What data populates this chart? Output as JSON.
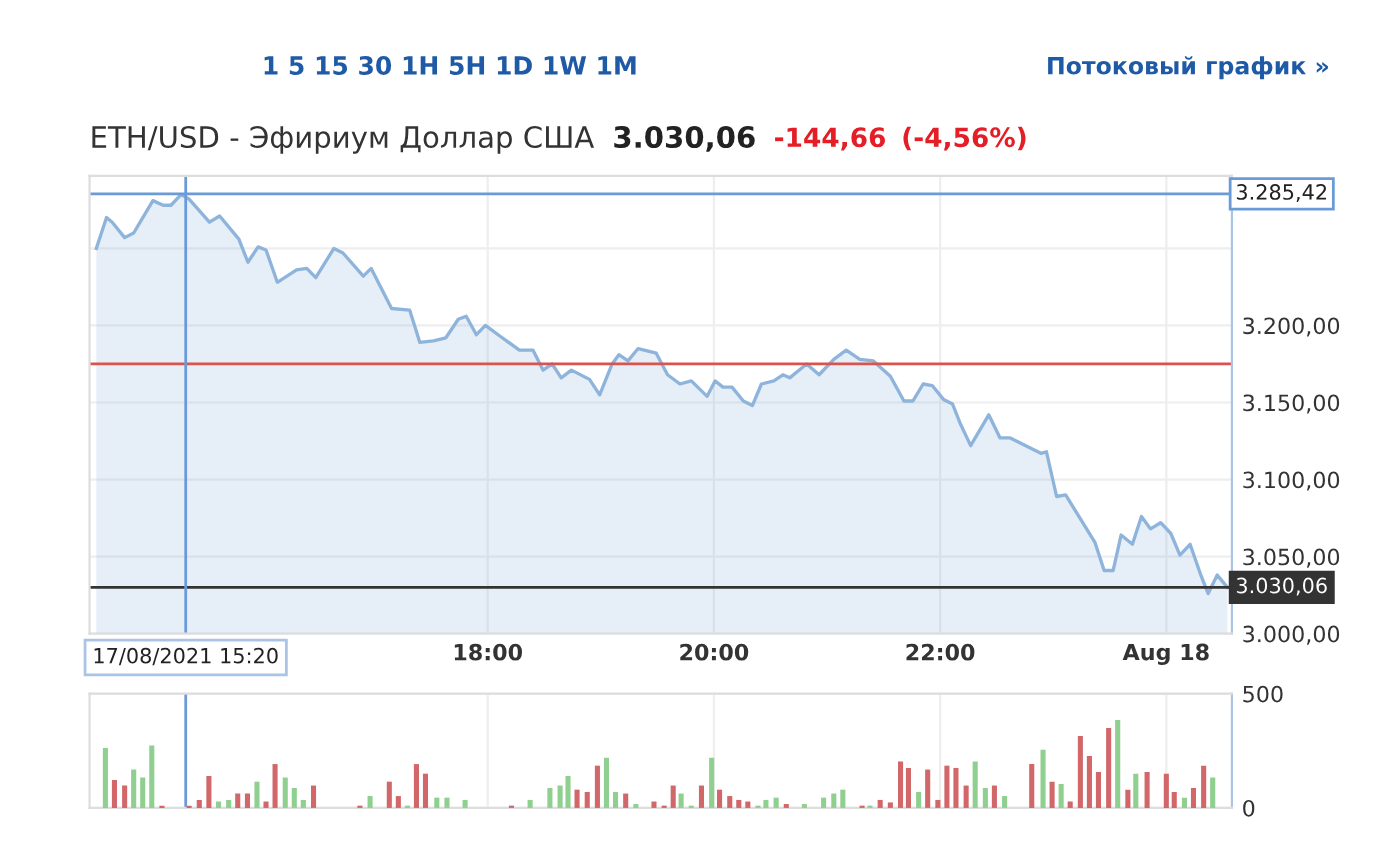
{
  "chart_data": [
    {
      "type": "area",
      "title": "ETH/USD - Эфириум Доллар США",
      "subtitle": "3.030,06",
      "annotations": [
        "-144,66",
        "(-4,56%)",
        "1 5 15 30 1H 5H 1D 1W 1M",
        "Потоковый график »"
      ],
      "series": [
        {
          "color": "#8fb4dc",
          "x": [
            14.54,
            14.63,
            14.68,
            14.79,
            14.87,
            15.04,
            15.13,
            15.2,
            15.29,
            15.36,
            15.54,
            15.63,
            15.8,
            15.88,
            15.97,
            16.04,
            16.14,
            16.31,
            16.4,
            16.48,
            16.64,
            16.72,
            16.9,
            16.97,
            17.15,
            17.31,
            17.4,
            17.52,
            17.63,
            17.74,
            17.81,
            17.9,
            17.98,
            18.11,
            18.28,
            18.4,
            18.49,
            18.57,
            18.65,
            18.74,
            18.9,
            18.99,
            19.1,
            19.16,
            19.24,
            19.33,
            19.49,
            19.59,
            19.7,
            19.8,
            19.94,
            20.01,
            20.08,
            20.16,
            20.26,
            20.34,
            20.42,
            20.53,
            20.61,
            20.67,
            20.82,
            20.93,
            21.06,
            21.17,
            21.29,
            21.41,
            21.56,
            21.68,
            21.76,
            21.85,
            21.93,
            22.03,
            22.11,
            22.18,
            22.27,
            22.43,
            22.53,
            22.62,
            22.89,
            22.94,
            23.03,
            23.11,
            23.37,
            23.45,
            23.53,
            23.6,
            23.7,
            23.78,
            23.86,
            23.95,
            24.04,
            24.12,
            24.21,
            24.3,
            24.37,
            24.45,
            24.54
          ],
          "values": [
            3250,
            3270,
            3267,
            3257,
            3260,
            3281,
            3278,
            3278,
            3285,
            3282,
            3267,
            3271,
            3256,
            3241,
            3251,
            3249,
            3228,
            3236,
            3237,
            3231,
            3250,
            3247,
            3232,
            3237,
            3211,
            3210,
            3189,
            3190,
            3192,
            3204,
            3206,
            3194,
            3200,
            3193,
            3184,
            3184,
            3171,
            3175,
            3166,
            3171,
            3165,
            3155,
            3175,
            3181,
            3177,
            3185,
            3182,
            3168,
            3162,
            3164,
            3154,
            3164,
            3160,
            3160,
            3151,
            3148,
            3162,
            3164,
            3168,
            3166,
            3175,
            3168,
            3178,
            3184,
            3178,
            3177,
            3167,
            3151,
            3151,
            3162,
            3161,
            3152,
            3149,
            3136,
            3122,
            3142,
            3127,
            3127,
            3117,
            3118,
            3089,
            3090,
            3059,
            3041,
            3041,
            3064,
            3058,
            3076,
            3068,
            3072,
            3065,
            3051,
            3058,
            3039,
            3026,
            3038,
            3030.06
          ]
        }
      ],
      "xlim": [
        14.48,
        24.58
      ],
      "ylim": [
        3000,
        3297
      ],
      "xticks": [
        {
          "value": 18,
          "label": "18:00"
        },
        {
          "value": 20,
          "label": "20:00"
        },
        {
          "value": 22,
          "label": "22:00"
        },
        {
          "value": 24,
          "label": "Aug 18"
        }
      ],
      "yticks": [
        {
          "value": 3000,
          "label": "3.000,00"
        },
        {
          "value": 3050,
          "label": "3.050,00"
        },
        {
          "value": 3100,
          "label": "3.100,00"
        },
        {
          "value": 3150,
          "label": "3.150,00"
        },
        {
          "value": 3200,
          "label": "3.200,00"
        },
        {
          "value": 3250,
          "label": null
        }
      ],
      "ref_lines": [
        {
          "axis": "y",
          "value": 3285.42,
          "label": "3.285,42",
          "color": "#6a9bd8"
        },
        {
          "axis": "y",
          "value": 3175,
          "color": "#d9534f"
        },
        {
          "axis": "y",
          "value": 3030.06,
          "label": "3.030,06",
          "color": "#333333"
        },
        {
          "axis": "x",
          "value": 15.33,
          "label": "17/08/2021 15:20",
          "color": "#6a9bd8"
        }
      ],
      "grid": true
    },
    {
      "type": "bar",
      "x": [
        14.62,
        14.7,
        14.79,
        14.87,
        14.95,
        15.03,
        15.12,
        15.36,
        15.45,
        15.535,
        15.62,
        15.71,
        15.79,
        15.876,
        15.96,
        16.04,
        16.12,
        16.21,
        16.29,
        16.37,
        16.46,
        16.87,
        16.96,
        17.13,
        17.21,
        17.29,
        17.37,
        17.45,
        17.55,
        17.64,
        17.8,
        18.21,
        18.375,
        18.55,
        18.64,
        18.71,
        18.79,
        18.88,
        18.97,
        19.05,
        19.13,
        19.22,
        19.31,
        19.47,
        19.56,
        19.64,
        19.71,
        19.8,
        19.89,
        19.98,
        20.05,
        20.14,
        20.22,
        20.3,
        20.39,
        20.46,
        20.55,
        20.64,
        20.8,
        20.97,
        21.06,
        21.14,
        21.31,
        21.38,
        21.47,
        21.56,
        21.65,
        21.72,
        21.81,
        21.89,
        21.98,
        22.06,
        22.14,
        22.23,
        22.31,
        22.4,
        22.48,
        22.57,
        22.81,
        22.91,
        22.99,
        23.07,
        23.15,
        23.24,
        23.32,
        23.4,
        23.49,
        23.57,
        23.66,
        23.73,
        23.83,
        24.0,
        24.07,
        24.16,
        24.24,
        24.33,
        24.41
      ],
      "values": [
        262,
        122,
        98,
        168,
        133,
        273,
        10,
        10,
        35,
        140,
        28,
        35,
        63,
        63,
        115,
        28,
        192,
        133,
        87,
        35,
        98,
        10,
        52,
        115,
        52,
        10,
        192,
        150,
        45,
        45,
        35,
        10,
        35,
        87,
        98,
        140,
        80,
        70,
        185,
        220,
        70,
        63,
        17,
        28,
        10,
        98,
        63,
        10,
        98,
        220,
        80,
        52,
        35,
        28,
        10,
        35,
        45,
        17,
        17,
        45,
        63,
        80,
        10,
        10,
        35,
        24,
        203,
        175,
        70,
        168,
        35,
        185,
        175,
        98,
        203,
        87,
        98,
        52,
        192,
        255,
        115,
        105,
        28,
        315,
        227,
        157,
        350,
        385,
        80,
        150,
        157,
        150,
        70,
        45,
        87,
        185,
        133
      ],
      "colors": [
        "#8fcf8f",
        "#d2676a",
        "#d2676a",
        "#8fcf8f",
        "#8fcf8f",
        "#8fcf8f",
        "#d2676a",
        "#d2676a",
        "#d2676a",
        "#d2676a",
        "#8fcf8f",
        "#8fcf8f",
        "#d2676a",
        "#d2676a",
        "#8fcf8f",
        "#d2676a",
        "#d2676a",
        "#8fcf8f",
        "#8fcf8f",
        "#8fcf8f",
        "#d2676a",
        "#d2676a",
        "#8fcf8f",
        "#d2676a",
        "#d2676a",
        "#8fcf8f",
        "#d2676a",
        "#d2676a",
        "#8fcf8f",
        "#8fcf8f",
        "#8fcf8f",
        "#d2676a",
        "#8fcf8f",
        "#8fcf8f",
        "#8fcf8f",
        "#8fcf8f",
        "#d2676a",
        "#d2676a",
        "#d2676a",
        "#8fcf8f",
        "#8fcf8f",
        "#d2676a",
        "#8fcf8f",
        "#d2676a",
        "#d2676a",
        "#d2676a",
        "#8fcf8f",
        "#8fcf8f",
        "#d2676a",
        "#8fcf8f",
        "#d2676a",
        "#d2676a",
        "#d2676a",
        "#d2676a",
        "#8fcf8f",
        "#8fcf8f",
        "#8fcf8f",
        "#d2676a",
        "#8fcf8f",
        "#8fcf8f",
        "#8fcf8f",
        "#8fcf8f",
        "#d2676a",
        "#8fcf8f",
        "#d2676a",
        "#d2676a",
        "#d2676a",
        "#d2676a",
        "#8fcf8f",
        "#d2676a",
        "#d2676a",
        "#d2676a",
        "#d2676a",
        "#d2676a",
        "#8fcf8f",
        "#8fcf8f",
        "#d2676a",
        "#8fcf8f",
        "#d2676a",
        "#8fcf8f",
        "#d2676a",
        "#8fcf8f",
        "#d2676a",
        "#d2676a",
        "#d2676a",
        "#d2676a",
        "#d2676a",
        "#8fcf8f",
        "#d2676a",
        "#8fcf8f",
        "#d2676a",
        "#d2676a",
        "#d2676a",
        "#8fcf8f",
        "#d2676a",
        "#d2676a",
        "#8fcf8f"
      ],
      "xlim": [
        14.48,
        24.58
      ],
      "ylim": [
        0,
        500
      ],
      "xticks": [
        18,
        20,
        22,
        24
      ],
      "yticks": [
        0,
        500
      ],
      "ref_lines": [
        {
          "axis": "x",
          "value": 15.33,
          "color": "#6a9bd8"
        }
      ],
      "tick_labels": "y",
      "grid": true
    }
  ]
}
